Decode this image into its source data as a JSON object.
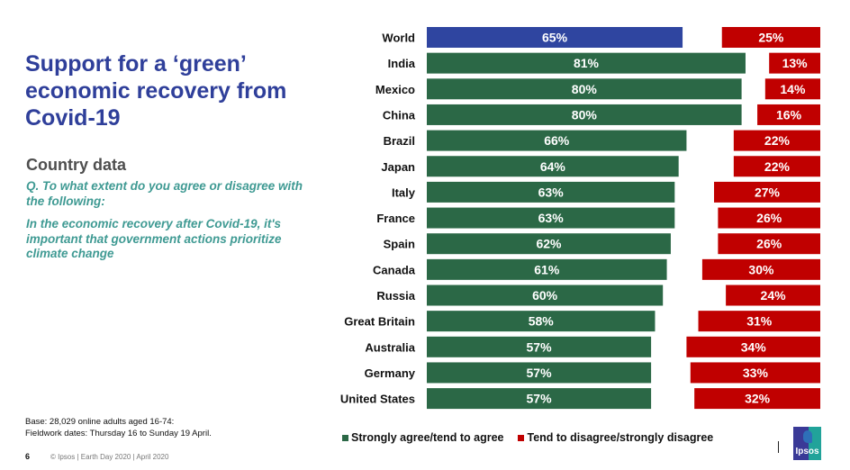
{
  "header": {
    "title": "Support for a ‘green’ economic recovery from Covid-19",
    "subtitle": "Country data",
    "question": "Q. To what extent do you agree or disagree with the following:",
    "statement": "In the economic recovery after Covid-19, it's important that government actions prioritize climate change"
  },
  "footer": {
    "base": "Base: 28,029 online adults aged 16-74:",
    "fieldwork": "Fieldwork dates: Thursday 16 to Sunday 19 April.",
    "page_number": "6",
    "copyright": "© Ipsos | Earth Day 2020 | April 2020",
    "logo_text": "Ipsos"
  },
  "colors": {
    "title": "#2f3f9a",
    "world_bar": "#2f45a0",
    "agree": "#2b6846",
    "disagree": "#c00000",
    "question_text": "#3f9a93"
  },
  "chart_data": {
    "type": "bar",
    "orientation": "horizontal",
    "title": "",
    "xlabel": "",
    "ylabel": "",
    "xlim": [
      0,
      100
    ],
    "grid": false,
    "legend_position": "bottom",
    "categories": [
      "World",
      "India",
      "Mexico",
      "China",
      "Brazil",
      "Japan",
      "Italy",
      "France",
      "Spain",
      "Canada",
      "Russia",
      "Great Britain",
      "Australia",
      "Germany",
      "United States"
    ],
    "series": [
      {
        "name": "Strongly agree/tend to agree",
        "color": "#2b6846",
        "values": [
          65,
          81,
          80,
          80,
          66,
          64,
          63,
          63,
          62,
          61,
          60,
          58,
          57,
          57,
          57
        ]
      },
      {
        "name": "Tend to disagree/strongly disagree",
        "color": "#c00000",
        "values": [
          25,
          13,
          14,
          16,
          22,
          22,
          27,
          26,
          26,
          30,
          24,
          31,
          34,
          33,
          32
        ]
      }
    ],
    "highlight": {
      "category": "World",
      "color": "#2f45a0"
    },
    "value_format": "{v}%"
  }
}
